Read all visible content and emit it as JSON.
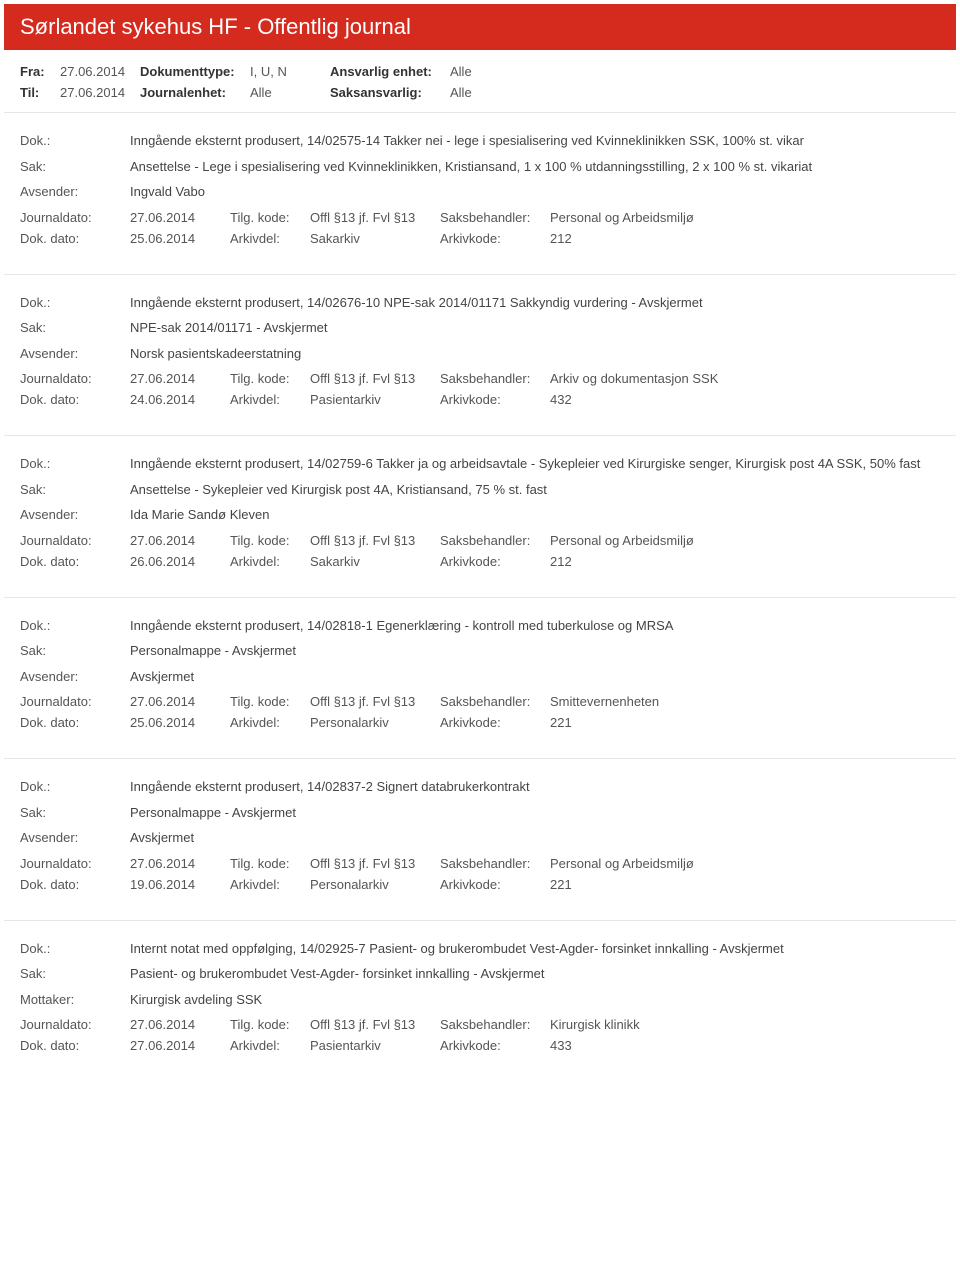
{
  "header": {
    "title": "Sørlandet sykehus HF - Offentlig journal"
  },
  "filter": {
    "fra_label": "Fra:",
    "fra": "27.06.2014",
    "til_label": "Til:",
    "til": "27.06.2014",
    "dokumenttype_label": "Dokumenttype:",
    "dokumenttype": "I, U, N",
    "journalenhet_label": "Journalenhet:",
    "journalenhet": "Alle",
    "ansvarlig_label": "Ansvarlig enhet:",
    "ansvarlig": "Alle",
    "saksansvarlig_label": "Saksansvarlig:",
    "saksansvarlig": "Alle"
  },
  "labels": {
    "dok": "Dok.:",
    "sak": "Sak:",
    "avsender": "Avsender:",
    "mottaker": "Mottaker:",
    "journaldato": "Journaldato:",
    "dokdato": "Dok. dato:",
    "tilgkode": "Tilg. kode:",
    "arkivdel": "Arkivdel:",
    "saksbehandler": "Saksbehandler:",
    "arkivkode": "Arkivkode:"
  },
  "entries": [
    {
      "dok": "Inngående eksternt produsert, 14/02575-14 Takker nei - lege i spesialisering ved Kvinneklinikken SSK, 100% st. vikar",
      "sak": "Ansettelse - Lege i spesialisering ved Kvinneklinikken, Kristiansand, 1 x 100 % utdanningsstilling, 2 x 100 % st. vikariat",
      "party_label": "avsender",
      "party": "Ingvald Vabo",
      "journaldato": "27.06.2014",
      "tilgkode": "Offl §13 jf. Fvl §13",
      "saksbehandler": "Personal og Arbeidsmiljø",
      "dokdato": "25.06.2014",
      "arkivdel": "Sakarkiv",
      "arkivkode": "212"
    },
    {
      "dok": "Inngående eksternt produsert, 14/02676-10 NPE-sak 2014/01171 Sakkyndig vurdering - Avskjermet",
      "sak": "NPE-sak 2014/01171 - Avskjermet",
      "party_label": "avsender",
      "party": "Norsk pasientskadeerstatning",
      "journaldato": "27.06.2014",
      "tilgkode": "Offl §13 jf. Fvl §13",
      "saksbehandler": "Arkiv og dokumentasjon SSK",
      "dokdato": "24.06.2014",
      "arkivdel": "Pasientarkiv",
      "arkivkode": "432"
    },
    {
      "dok": "Inngående eksternt produsert, 14/02759-6 Takker ja og arbeidsavtale - Sykepleier ved Kirurgiske senger, Kirurgisk post 4A SSK, 50% fast",
      "sak": "Ansettelse - Sykepleier ved  Kirurgisk post 4A, Kristiansand, 75 % st. fast",
      "party_label": "avsender",
      "party": "Ida Marie Sandø Kleven",
      "journaldato": "27.06.2014",
      "tilgkode": "Offl §13 jf. Fvl §13",
      "saksbehandler": "Personal og Arbeidsmiljø",
      "dokdato": "26.06.2014",
      "arkivdel": "Sakarkiv",
      "arkivkode": "212"
    },
    {
      "dok": "Inngående eksternt produsert, 14/02818-1 Egenerklæring - kontroll med tuberkulose og MRSA",
      "sak": "Personalmappe - Avskjermet",
      "party_label": "avsender",
      "party": "Avskjermet",
      "journaldato": "27.06.2014",
      "tilgkode": "Offl §13 jf. Fvl §13",
      "saksbehandler": "Smittevernenheten",
      "dokdato": "25.06.2014",
      "arkivdel": "Personalarkiv",
      "arkivkode": "221"
    },
    {
      "dok": "Inngående eksternt produsert, 14/02837-2 Signert databrukerkontrakt",
      "sak": "Personalmappe - Avskjermet",
      "party_label": "avsender",
      "party": "Avskjermet",
      "journaldato": "27.06.2014",
      "tilgkode": "Offl §13 jf. Fvl §13",
      "saksbehandler": "Personal og Arbeidsmiljø",
      "dokdato": "19.06.2014",
      "arkivdel": "Personalarkiv",
      "arkivkode": "221"
    },
    {
      "dok": "Internt notat med oppfølging, 14/02925-7 Pasient- og brukerombudet Vest-Agder- forsinket innkalling - Avskjermet",
      "sak": "Pasient- og brukerombudet Vest-Agder- forsinket innkalling - Avskjermet",
      "party_label": "mottaker",
      "party": "Kirurgisk avdeling SSK",
      "journaldato": "27.06.2014",
      "tilgkode": "Offl §13 jf. Fvl §13",
      "saksbehandler": "Kirurgisk klinikk",
      "dokdato": "27.06.2014",
      "arkivdel": "Pasientarkiv",
      "arkivkode": "433"
    }
  ]
}
